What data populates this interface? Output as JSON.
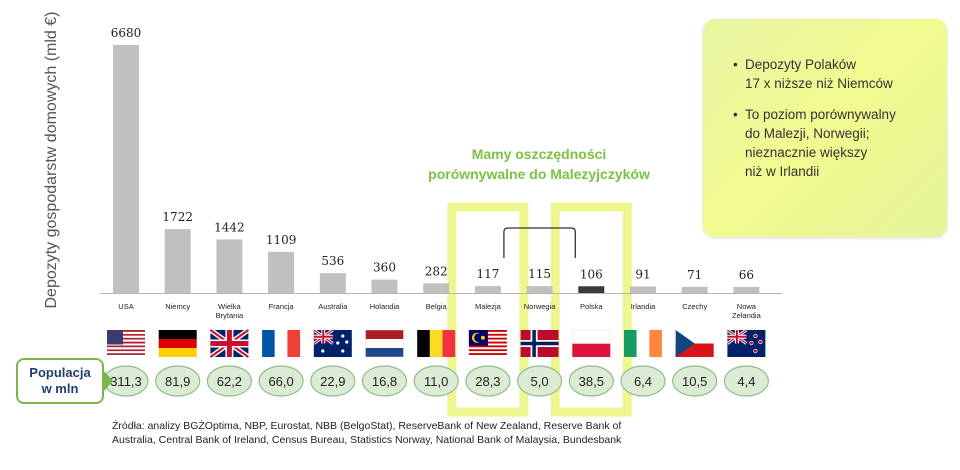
{
  "chart_data": {
    "type": "bar",
    "ylabel": "Depozyty gospodarstw domowych (mld €)",
    "categories": [
      "USA",
      "Niemcy",
      "Wielka Brytania",
      "Francja",
      "Australia",
      "Holandia",
      "Belgia",
      "Malezja",
      "Norwegia",
      "Polska",
      "Irlandia",
      "Czechy",
      "Nowa Zelandia"
    ],
    "category_lines": [
      [
        "USA"
      ],
      [
        "Niemcy"
      ],
      [
        "Wielka",
        "Brytania"
      ],
      [
        "Francja"
      ],
      [
        "Australia"
      ],
      [
        "Holandia"
      ],
      [
        "Belgia"
      ],
      [
        "Malezja"
      ],
      [
        "Norwegia"
      ],
      [
        "Polska"
      ],
      [
        "Irlandia"
      ],
      [
        "Czechy"
      ],
      [
        "Nowa",
        "Zelandia"
      ]
    ],
    "values": [
      6680,
      1722,
      1442,
      1109,
      536,
      360,
      282,
      117,
      115,
      106,
      91,
      71,
      66
    ],
    "value_labels": [
      "6680",
      "1722",
      "1442",
      "1109",
      "536",
      "360",
      "282",
      "117",
      "115",
      "106",
      "91",
      "71",
      "66"
    ],
    "bar_colors": [
      "#c0c0c0",
      "#c0c0c0",
      "#c0c0c0",
      "#c0c0c0",
      "#c0c0c0",
      "#c0c0c0",
      "#c0c0c0",
      "#c0c0c0",
      "#c0c0c0",
      "#3a3a3a",
      "#c0c0c0",
      "#c0c0c0",
      "#c0c0c0"
    ],
    "flags": [
      "flag-usa",
      "flag-germany",
      "flag-uk",
      "flag-france",
      "flag-australia",
      "flag-netherlands",
      "flag-belgium",
      "flag-malaysia",
      "flag-norway",
      "flag-poland",
      "flag-ireland",
      "flag-czech",
      "flag-new-zealand"
    ],
    "population_label": "Populacja\nw mln",
    "population": [
      "311,3",
      "81,9",
      "62,2",
      "66,0",
      "22,9",
      "16,8",
      "11,0",
      "28,3",
      "5,0",
      "38,5",
      "6,4",
      "10,5",
      "4,4"
    ],
    "highlight_annotation": "Mamy oszczędności\nporównywalne do Malezyjczyków",
    "highlight_categories": [
      "Malezja",
      "Norwegia",
      "Polska"
    ],
    "grid": false
  },
  "callout": {
    "items": [
      "Depozyty Polaków\n17 x niższe niż Niemców",
      "To poziom porównywalny\ndo Malezji, Norwegii;\nnieznacznie większy\nniż w Irlandii"
    ]
  },
  "sources": "Źródła: analizy BGŻOptima, NBP, Eurostat, NBB (BelgoStat), ReserveBank of New Zealand, Reserve Bank of\nAustralia, Central Bank of Ireland, Census Bureau, Statistics Norway, National Bank of Malaysia, Bundesbank",
  "colors": {
    "bar": "#c0c0c0",
    "bar_highlight": "#3a3a3a",
    "accent_green": "#7bc242",
    "highlight_frame": "#eef78f",
    "pill_fill": "#dcecd4",
    "pill_border": "#8fbc8f",
    "callout_bg": "#eef79a"
  }
}
